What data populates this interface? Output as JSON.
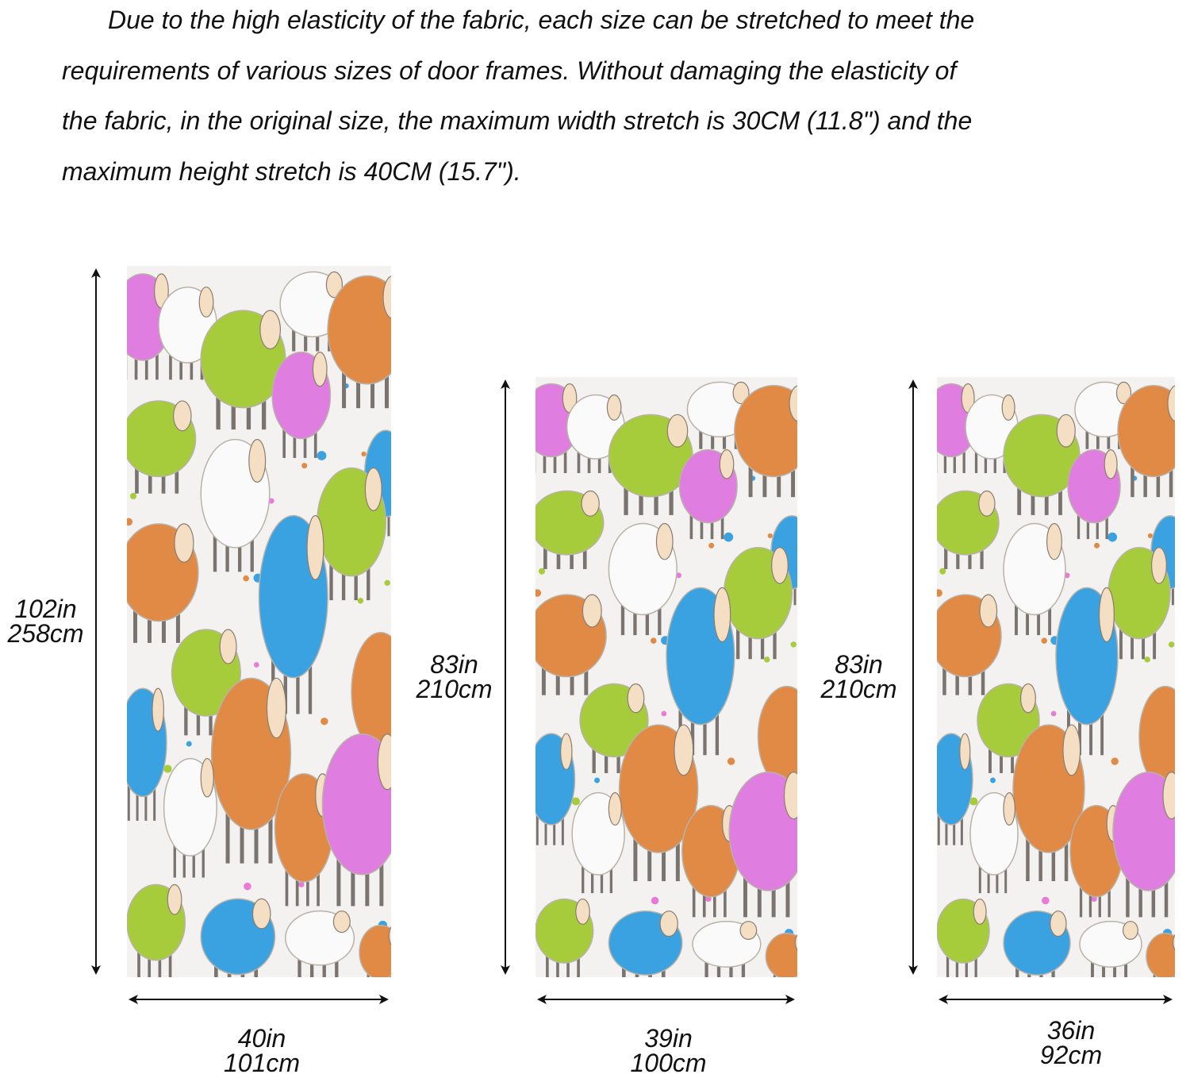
{
  "description": {
    "line1": "Due to the high elasticity of the fabric, each size can be stretched to meet the",
    "line2": "requirements of various sizes of door frames. Without damaging the elasticity of",
    "line3": "the fabric, in the original size, the maximum width stretch is 30CM (11.8\") and the",
    "line4": "maximum height stretch is 40CM (15.7\")."
  },
  "sizes": [
    {
      "height_in": "102in",
      "height_cm": "258cm",
      "width_in": "40in",
      "width_cm": "101cm"
    },
    {
      "height_in": "83in",
      "height_cm": "210cm",
      "width_in": "39in",
      "width_cm": "100cm"
    },
    {
      "height_in": "83in",
      "height_cm": "210cm",
      "width_in": "36in",
      "width_cm": "92cm"
    }
  ],
  "pattern": {
    "background": "#f3f2f0",
    "colors": {
      "pink": "#e07de0",
      "green": "#a6cc3c",
      "orange": "#e08a46",
      "blue": "#3aa2e0",
      "white": "#fafafa"
    }
  }
}
